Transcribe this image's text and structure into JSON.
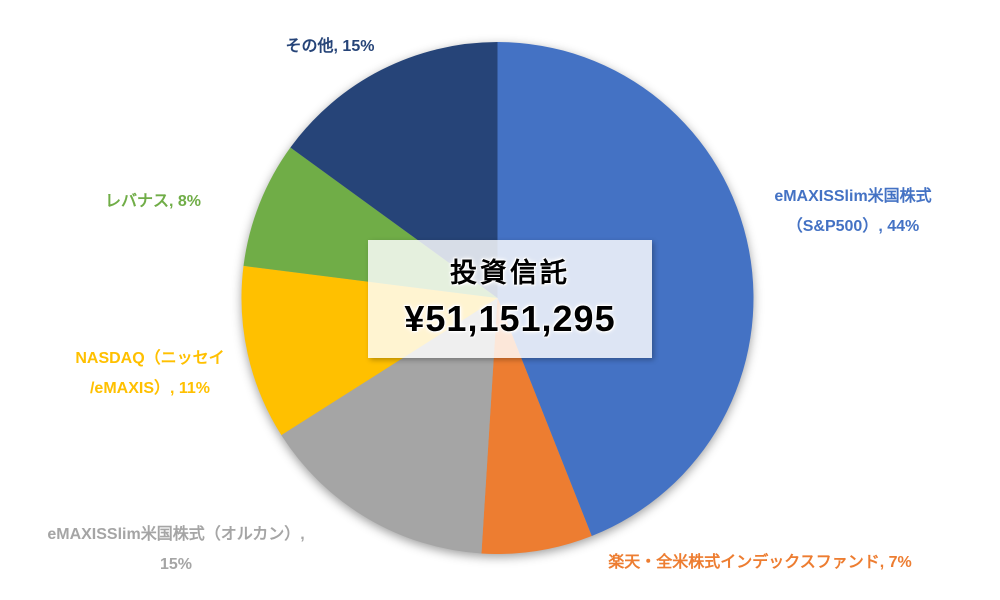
{
  "chart_data": {
    "type": "pie",
    "title": "投資信託",
    "center_overlay": {
      "title": "投資信託",
      "value": "¥51,151,295"
    },
    "unit": "%",
    "direction": "clockwise",
    "start_angle_deg": 0,
    "legend_position": "none",
    "labels_style": "category name, percentage (outside end)",
    "categories": [
      "eMAXISSlim米国株式（S&P500）",
      "楽天・全米株式インデックスファンド",
      "eMAXISSlim米国株式（オルカン）",
      "NASDAQ（ニッセイ/eMAXIS）",
      "レバナス",
      "その他"
    ],
    "values": [
      44,
      7,
      15,
      11,
      8,
      15
    ],
    "slices": [
      {
        "name": "eMAXISSlim米国株式（S&P500）",
        "percent": 44,
        "color": "#4472C4",
        "label_lines": [
          "eMAXISSlim米国株式",
          "（S&P500）, 44%"
        ]
      },
      {
        "name": "楽天・全米株式インデックスファンド",
        "percent": 7,
        "color": "#ED7D31",
        "label_lines": [
          "楽天・全米株式インデックスファンド, 7%"
        ]
      },
      {
        "name": "eMAXISSlim米国株式（オルカン）",
        "percent": 15,
        "color": "#A5A5A5",
        "label_lines": [
          "eMAXISSlim米国株式（オルカン）,",
          "15%"
        ]
      },
      {
        "name": "NASDAQ（ニッセイ/eMAXIS）",
        "percent": 11,
        "color": "#FFC000",
        "label_lines": [
          "NASDAQ（ニッセイ",
          "/eMAXIS）, 11%"
        ]
      },
      {
        "name": "レバナス",
        "percent": 8,
        "color": "#70AD47",
        "label_lines": [
          "レバナス, 8%"
        ]
      },
      {
        "name": "その他",
        "percent": 15,
        "color": "#264478",
        "label_lines": [
          "その他, 15%"
        ]
      }
    ]
  }
}
